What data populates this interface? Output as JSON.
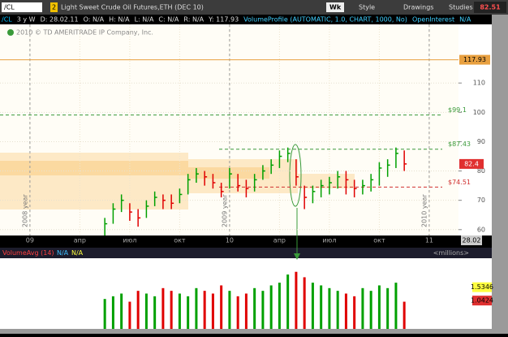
{
  "toolbar": {
    "symbol": "/CL",
    "link": "2",
    "description": "Light Sweet Crude Oil Futures,ETH (DEC 10)",
    "aggregation": "Wk",
    "style": "Style",
    "drawings": "Drawings",
    "studies": "Studies",
    "price": "82.51"
  },
  "info_bar": {
    "symbol": "/CL",
    "period": "3 y W",
    "items": [
      "D: 28.02.11",
      "O: N/A",
      "H: N/A",
      "L: N/A",
      "C: N/A",
      "R: N/A",
      "Y: 117.93"
    ],
    "studies": [
      "VolumeProfile (AUTOMATIC, 1.0, CHART, 1000, No)",
      "OpenInterest",
      "N/A"
    ]
  },
  "copyright": "2010 © TD AMERITRADE IP Company, Inc.",
  "date_marker": "28.02",
  "chart_data": [
    {
      "type": "ohlc",
      "x": [
        4.5,
        5,
        5.5,
        6,
        6.5,
        7,
        7.5,
        8,
        8.5,
        9,
        9.5,
        10,
        10.5,
        11,
        11.5,
        12,
        12.5,
        13,
        13.5,
        14,
        14.5,
        15,
        15.5,
        16,
        16.5,
        17,
        17.5,
        18,
        18.5,
        19,
        19.5,
        20,
        20.5,
        21,
        21.5,
        22,
        22.5
      ],
      "high": [
        64,
        69,
        72,
        69,
        67,
        70,
        73,
        72,
        72,
        74,
        79,
        81,
        80,
        79,
        76,
        81,
        79,
        77,
        79,
        82,
        84,
        87,
        88,
        84,
        75,
        75,
        77,
        78,
        80,
        80,
        77,
        77,
        79,
        83,
        84,
        88,
        87
      ],
      "low": [
        58,
        62,
        66,
        63,
        61,
        64,
        68,
        67,
        67,
        69,
        72,
        76,
        75,
        74,
        71,
        74,
        73,
        71,
        73,
        77,
        79,
        81,
        83,
        75,
        67,
        69,
        71,
        72,
        74,
        72,
        71,
        72,
        73,
        75,
        78,
        81,
        80
      ],
      "close": [
        62,
        67,
        70,
        66,
        64,
        68,
        71,
        70,
        69,
        72,
        77,
        79,
        78,
        76,
        73,
        79,
        75,
        74,
        77,
        80,
        82,
        85,
        86,
        78,
        71,
        73,
        75,
        76,
        78,
        77,
        74,
        75,
        77,
        81,
        82,
        86,
        82.4
      ],
      "up_color": "#00a000",
      "down_color": "#e00000",
      "xlim": [
        -1.8,
        25.76
      ],
      "ylim": [
        58,
        130
      ],
      "xticks": [
        {
          "value": 0,
          "label": "09"
        },
        {
          "value": 3,
          "label": "апр"
        },
        {
          "value": 6,
          "label": "июл"
        },
        {
          "value": 9,
          "label": "окт"
        },
        {
          "value": 12,
          "label": "10"
        },
        {
          "value": 15,
          "label": "апр"
        },
        {
          "value": 18,
          "label": "июл"
        },
        {
          "value": 21,
          "label": "окт"
        },
        {
          "value": 24,
          "label": "11"
        }
      ],
      "yticks": [
        60,
        70,
        80,
        90,
        100,
        110
      ],
      "levels": [
        {
          "value": 99.1,
          "label": "$99.1",
          "color": "#3a9a3a"
        },
        {
          "value": 87.43,
          "label": "$87.43",
          "color": "#3a9a3a"
        },
        {
          "value": 74.51,
          "label": "$74.51",
          "color": "#d03030"
        }
      ],
      "price_line": {
        "value": 117.93,
        "color": "#e8a040"
      },
      "last": {
        "value": 82.4,
        "color": "#e03030"
      },
      "separators": [
        {
          "x": 0,
          "label": "2008 year"
        },
        {
          "x": 12,
          "label": "2009 year"
        },
        {
          "x": 24,
          "label": "2010 year"
        }
      ],
      "grid": true
    },
    {
      "type": "volume",
      "title": "VolumeAvg (14)",
      "fields": [
        "N/A",
        "N/A"
      ],
      "unit": "<millions>",
      "x": [
        4.5,
        5,
        5.5,
        6,
        6.5,
        7,
        7.5,
        8,
        8.5,
        9,
        9.5,
        10,
        10.5,
        11,
        11.5,
        12,
        12.5,
        13,
        13.5,
        14,
        14.5,
        15,
        15.5,
        16,
        16.5,
        17,
        17.5,
        18,
        18.5,
        19,
        19.5,
        20,
        20.5,
        21,
        21.5,
        22,
        22.5
      ],
      "values": [
        1.1,
        1.2,
        1.3,
        1.0,
        1.4,
        1.3,
        1.2,
        1.5,
        1.4,
        1.3,
        1.2,
        1.5,
        1.4,
        1.3,
        1.6,
        1.4,
        1.2,
        1.3,
        1.5,
        1.4,
        1.6,
        1.7,
        2.0,
        2.1,
        1.9,
        1.7,
        1.6,
        1.5,
        1.4,
        1.3,
        1.2,
        1.5,
        1.4,
        1.6,
        1.5,
        1.7,
        1.0
      ],
      "xlim": [
        -1.8,
        25.76
      ],
      "ylim": [
        0,
        2.6
      ],
      "markers": [
        {
          "value": 1.5346,
          "color": "#ffff40"
        },
        {
          "value": 1.0424,
          "color": "#e03030"
        }
      ]
    }
  ]
}
